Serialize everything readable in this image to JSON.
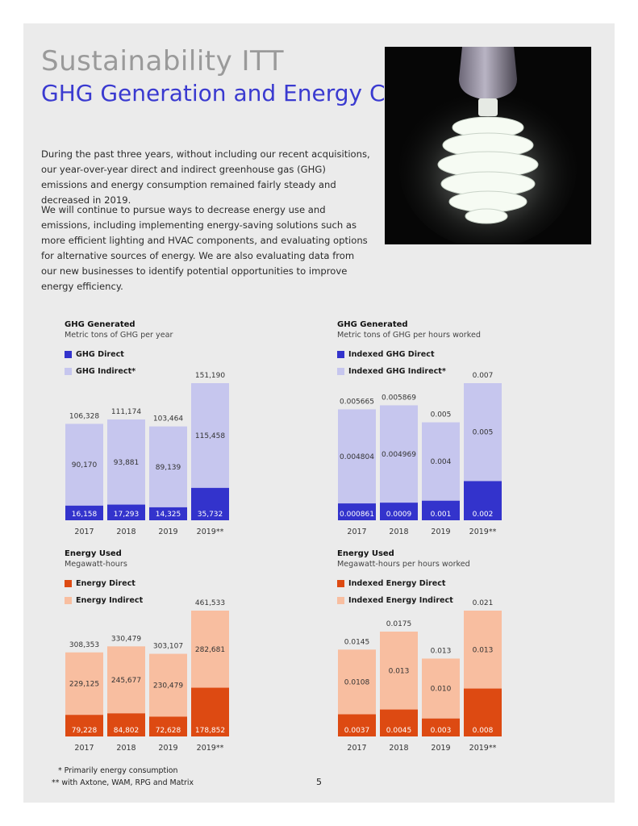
{
  "page": {
    "title": "Sustainability ITT",
    "subtitle": "GHG Generation and Energy Consumption",
    "paragraphs": [
      "During the past three years, without including our recent acquisitions, our year-over-year direct and indirect greenhouse gas (GHG) emissions and energy consumption remained fairly steady and decreased in 2019.",
      "We will continue to pursue ways to decrease energy use and emissions, including implementing energy-saving solutions such as more efficient lighting and HVAC components, and evaluating options for alternative sources of energy. We are also evaluating data from our new businesses to identify potential opportunities to improve energy efficiency."
    ],
    "footnotes": [
      "* Primarily energy consumption",
      "** with Axtone, WAM, RPG and Matrix"
    ],
    "page_number": "5",
    "photo_icon": "light-bulb-icon"
  },
  "colors": {
    "ghg_direct": "#3333cc",
    "ghg_indirect": "#c6c6ee",
    "energy_direct": "#dd4a12",
    "energy_indirect": "#f8bea0",
    "title_blue": "#3a3ad0",
    "title_gray": "#9a9a9a"
  },
  "chart_data": [
    {
      "type": "bar",
      "stacked": true,
      "title": "GHG Generated",
      "subtitle": "Metric tons of GHG per year",
      "categories": [
        "2017",
        "2018",
        "2019",
        "2019**"
      ],
      "series": [
        {
          "name": "GHG Direct",
          "values": [
            16158,
            17293,
            14325,
            35732
          ],
          "labels": [
            "16,158",
            "17,293",
            "14,325",
            "35,732"
          ]
        },
        {
          "name": "GHG Indirect*",
          "values": [
            90170,
            93881,
            89139,
            115458
          ],
          "labels": [
            "90,170",
            "93,881",
            "89,139",
            "115,458"
          ]
        }
      ],
      "totals": [
        106328,
        111174,
        103464,
        151190
      ],
      "total_labels": [
        "106,328",
        "111,174",
        "103,464",
        "151,190"
      ],
      "ylim": [
        0,
        151190
      ],
      "legend": "top-left",
      "grid": false
    },
    {
      "type": "bar",
      "stacked": true,
      "title": "GHG Generated",
      "subtitle": "Metric tons of GHG per hours worked",
      "categories": [
        "2017",
        "2018",
        "2019",
        "2019**"
      ],
      "series": [
        {
          "name": "Indexed GHG Direct",
          "values": [
            0.000861,
            0.0009,
            0.001,
            0.002
          ],
          "labels": [
            "0.000861",
            "0.0009",
            "0.001",
            "0.002"
          ]
        },
        {
          "name": "Indexed GHG Indirect*",
          "values": [
            0.004804,
            0.004969,
            0.004,
            0.005
          ],
          "labels": [
            "0.004804",
            "0.004969",
            "0.004",
            "0.005"
          ]
        }
      ],
      "totals": [
        0.005665,
        0.005869,
        0.005,
        0.007
      ],
      "total_labels": [
        "0.005665",
        "0.005869",
        "0.005",
        "0.007"
      ],
      "ylim": [
        0,
        0.007
      ],
      "legend": "top-left",
      "grid": false
    },
    {
      "type": "bar",
      "stacked": true,
      "title": "Energy Used",
      "subtitle": "Megawatt-hours",
      "categories": [
        "2017",
        "2018",
        "2019",
        "2019**"
      ],
      "series": [
        {
          "name": "Energy Direct",
          "values": [
            79228,
            84802,
            72628,
            178852
          ],
          "labels": [
            "79,228",
            "84,802",
            "72,628",
            "178,852"
          ]
        },
        {
          "name": "Energy Indirect",
          "values": [
            229125,
            245677,
            230479,
            282681
          ],
          "labels": [
            "229,125",
            "245,677",
            "230,479",
            "282,681"
          ]
        }
      ],
      "totals": [
        308353,
        330479,
        303107,
        461533
      ],
      "total_labels": [
        "308,353",
        "330,479",
        "303,107",
        "461,533"
      ],
      "ylim": [
        0,
        461533
      ],
      "legend": "top-left",
      "grid": false
    },
    {
      "type": "bar",
      "stacked": true,
      "title": "Energy Used",
      "subtitle": "Megawatt-hours per hours worked",
      "categories": [
        "2017",
        "2018",
        "2019",
        "2019**"
      ],
      "series": [
        {
          "name": "Indexed Energy Direct",
          "values": [
            0.0037,
            0.0045,
            0.003,
            0.008
          ],
          "labels": [
            "0.0037",
            "0.0045",
            "0.003",
            "0.008"
          ]
        },
        {
          "name": "Indexed Energy Indirect",
          "values": [
            0.0108,
            0.013,
            0.01,
            0.013
          ],
          "labels": [
            "0.0108",
            "0.013",
            "0.010",
            "0.013"
          ]
        }
      ],
      "totals": [
        0.0145,
        0.0175,
        0.013,
        0.021
      ],
      "total_labels": [
        "0.0145",
        "0.0175",
        "0.013",
        "0.021"
      ],
      "ylim": [
        0,
        0.021
      ],
      "legend": "top-left",
      "grid": false
    }
  ]
}
